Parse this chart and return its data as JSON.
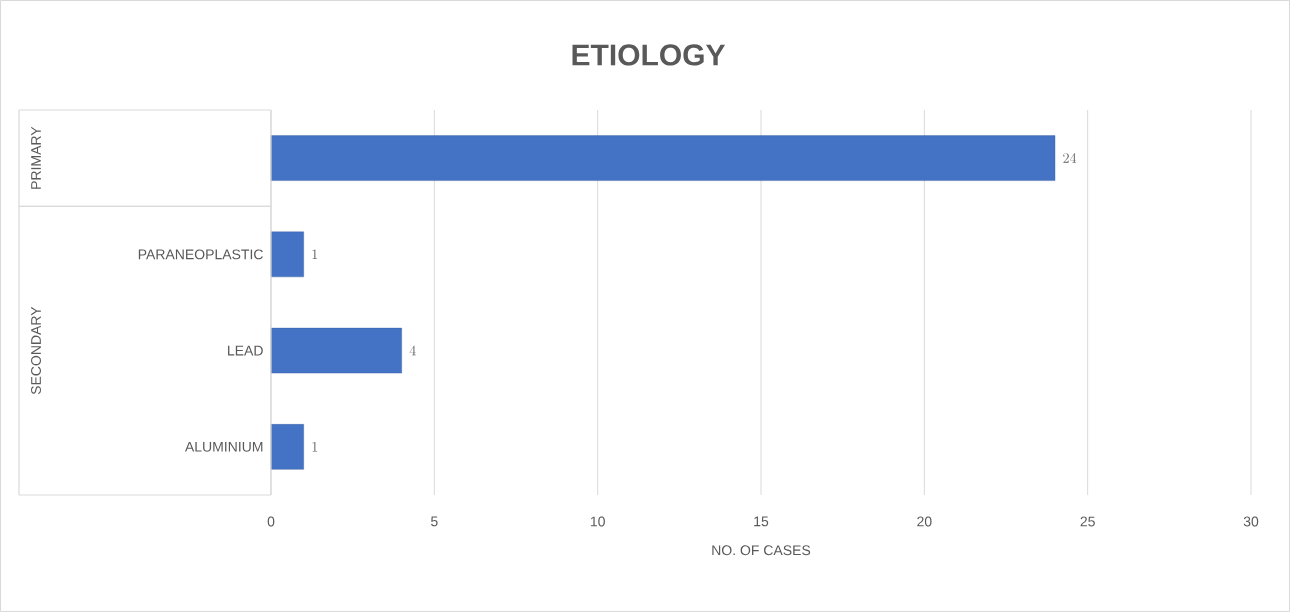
{
  "chart_data": {
    "type": "bar",
    "orientation": "horizontal",
    "title": "ETIOLOGY",
    "xlabel": "NO. OF CASES",
    "categories": [
      null,
      "PARANEOPLASTIC",
      "LEAD",
      "ALUMINIUM"
    ],
    "values": [
      24,
      1,
      4,
      1
    ],
    "color": "#4472c4",
    "xlim": [
      0,
      30
    ],
    "xticks": [
      0,
      5,
      10,
      15,
      20,
      25,
      30
    ],
    "grid": "x",
    "data_labels": true,
    "annotations": [
      "PRIMARY",
      "SECONDARY"
    ]
  }
}
